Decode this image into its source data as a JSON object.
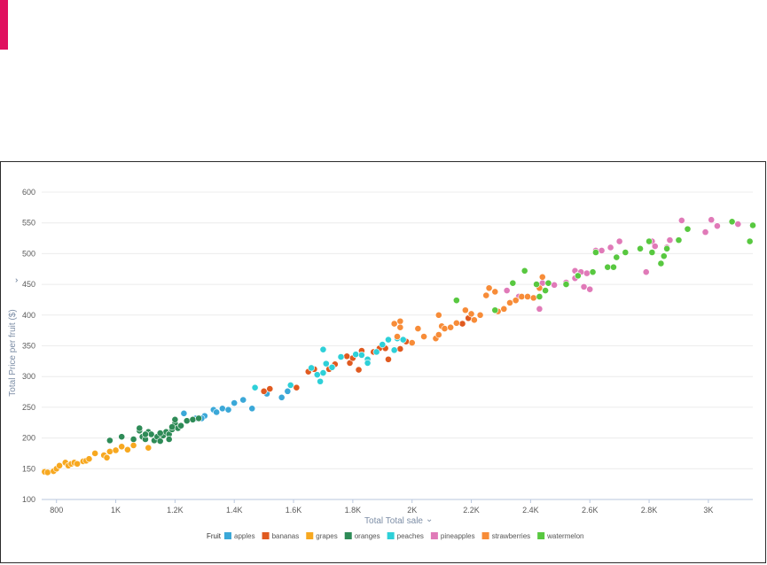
{
  "accent_color": "#e0115f",
  "chart_data": {
    "type": "scatter",
    "xlabel": "Total Total sale",
    "ylabel": "Total Price per fruit ($)",
    "xlim": [
      750,
      3150
    ],
    "ylim": [
      100,
      600
    ],
    "x_ticks": [
      {
        "v": 800,
        "label": "800"
      },
      {
        "v": 1000,
        "label": "1K"
      },
      {
        "v": 1200,
        "label": "1.2K"
      },
      {
        "v": 1400,
        "label": "1.4K"
      },
      {
        "v": 1600,
        "label": "1.6K"
      },
      {
        "v": 1800,
        "label": "1.8K"
      },
      {
        "v": 2000,
        "label": "2K"
      },
      {
        "v": 2200,
        "label": "2.2K"
      },
      {
        "v": 2400,
        "label": "2.4K"
      },
      {
        "v": 2600,
        "label": "2.6K"
      },
      {
        "v": 2800,
        "label": "2.8K"
      },
      {
        "v": 3000,
        "label": "3K"
      }
    ],
    "y_ticks": [
      {
        "v": 100,
        "label": "100"
      },
      {
        "v": 150,
        "label": "150"
      },
      {
        "v": 200,
        "label": "200"
      },
      {
        "v": 250,
        "label": "250"
      },
      {
        "v": 300,
        "label": "300"
      },
      {
        "v": 350,
        "label": "350"
      },
      {
        "v": 400,
        "label": "400"
      },
      {
        "v": 450,
        "label": "450"
      },
      {
        "v": 500,
        "label": "500"
      },
      {
        "v": 550,
        "label": "550"
      },
      {
        "v": 600,
        "label": "600"
      }
    ],
    "grid": true,
    "legend": {
      "title": "Fruit",
      "position": "bottom"
    },
    "series": [
      {
        "name": "apples",
        "color": "#3ba8d8",
        "points": [
          [
            1240,
            228
          ],
          [
            1270,
            232
          ],
          [
            1300,
            236
          ],
          [
            1330,
            246
          ],
          [
            1360,
            248
          ],
          [
            1380,
            246
          ],
          [
            1400,
            257
          ],
          [
            1430,
            262
          ],
          [
            1460,
            248
          ],
          [
            1510,
            272
          ],
          [
            1560,
            266
          ],
          [
            1580,
            276
          ],
          [
            1590,
            286
          ],
          [
            1340,
            242
          ],
          [
            1230,
            240
          ],
          [
            1290,
            232
          ]
        ]
      },
      {
        "name": "bananas",
        "color": "#e05a20",
        "points": [
          [
            1500,
            276
          ],
          [
            1520,
            280
          ],
          [
            1610,
            282
          ],
          [
            1650,
            308
          ],
          [
            1670,
            312
          ],
          [
            1720,
            312
          ],
          [
            1740,
            320
          ],
          [
            1780,
            333
          ],
          [
            1790,
            322
          ],
          [
            1800,
            330
          ],
          [
            1820,
            311
          ],
          [
            1830,
            342
          ],
          [
            1850,
            326
          ],
          [
            1870,
            340
          ],
          [
            1890,
            346
          ],
          [
            1910,
            346
          ],
          [
            1920,
            328
          ],
          [
            1960,
            345
          ],
          [
            1980,
            357
          ],
          [
            2170,
            386
          ],
          [
            2190,
            395
          ]
        ]
      },
      {
        "name": "grapes",
        "color": "#f7a820",
        "points": [
          [
            760,
            145
          ],
          [
            770,
            144
          ],
          [
            790,
            146
          ],
          [
            800,
            150
          ],
          [
            810,
            155
          ],
          [
            830,
            160
          ],
          [
            840,
            155
          ],
          [
            850,
            158
          ],
          [
            860,
            160
          ],
          [
            870,
            158
          ],
          [
            890,
            162
          ],
          [
            900,
            163
          ],
          [
            910,
            166
          ],
          [
            930,
            175
          ],
          [
            960,
            172
          ],
          [
            970,
            168
          ],
          [
            980,
            178
          ],
          [
            1000,
            180
          ],
          [
            1020,
            186
          ],
          [
            1040,
            181
          ],
          [
            1060,
            188
          ],
          [
            1110,
            184
          ]
        ]
      },
      {
        "name": "oranges",
        "color": "#2e8b57",
        "points": [
          [
            980,
            196
          ],
          [
            1020,
            202
          ],
          [
            1060,
            198
          ],
          [
            1080,
            212
          ],
          [
            1090,
            202
          ],
          [
            1100,
            198
          ],
          [
            1110,
            210
          ],
          [
            1120,
            206
          ],
          [
            1130,
            196
          ],
          [
            1140,
            202
          ],
          [
            1150,
            195
          ],
          [
            1160,
            204
          ],
          [
            1170,
            210
          ],
          [
            1180,
            206
          ],
          [
            1190,
            214
          ],
          [
            1200,
            224
          ],
          [
            1210,
            216
          ],
          [
            1220,
            220
          ],
          [
            1240,
            228
          ],
          [
            1260,
            230
          ],
          [
            1280,
            232
          ],
          [
            1080,
            216
          ],
          [
            1100,
            206
          ],
          [
            1180,
            198
          ],
          [
            1200,
            230
          ],
          [
            1150,
            208
          ],
          [
            1190,
            218
          ]
        ]
      },
      {
        "name": "peaches",
        "color": "#2ed0d8",
        "points": [
          [
            1470,
            282
          ],
          [
            1590,
            286
          ],
          [
            1660,
            314
          ],
          [
            1680,
            303
          ],
          [
            1700,
            306
          ],
          [
            1710,
            321
          ],
          [
            1730,
            315
          ],
          [
            1760,
            332
          ],
          [
            1690,
            292
          ],
          [
            1700,
            344
          ],
          [
            1810,
            336
          ],
          [
            1830,
            335
          ],
          [
            1850,
            328
          ],
          [
            1880,
            340
          ],
          [
            1900,
            352
          ],
          [
            1920,
            360
          ],
          [
            1950,
            362
          ],
          [
            1970,
            360
          ],
          [
            1940,
            343
          ],
          [
            1850,
            322
          ]
        ]
      },
      {
        "name": "pineapples",
        "color": "#e07ab8",
        "points": [
          [
            2320,
            440
          ],
          [
            2360,
            430
          ],
          [
            2440,
            452
          ],
          [
            2430,
            410
          ],
          [
            2480,
            449
          ],
          [
            2520,
            453
          ],
          [
            2550,
            472
          ],
          [
            2560,
            465
          ],
          [
            2570,
            470
          ],
          [
            2580,
            446
          ],
          [
            2600,
            442
          ],
          [
            2590,
            468
          ],
          [
            2620,
            505
          ],
          [
            2640,
            505
          ],
          [
            2670,
            510
          ],
          [
            2700,
            520
          ],
          [
            2790,
            470
          ],
          [
            2810,
            520
          ],
          [
            2820,
            512
          ],
          [
            2860,
            510
          ],
          [
            2870,
            522
          ],
          [
            2910,
            554
          ],
          [
            2990,
            535
          ],
          [
            3010,
            555
          ],
          [
            3030,
            545
          ],
          [
            3100,
            548
          ],
          [
            2550,
            460
          ]
        ]
      },
      {
        "name": "strawberries",
        "color": "#f78c38",
        "points": [
          [
            1950,
            365
          ],
          [
            1960,
            390
          ],
          [
            2000,
            355
          ],
          [
            2020,
            378
          ],
          [
            2040,
            365
          ],
          [
            2080,
            362
          ],
          [
            2090,
            368
          ],
          [
            2100,
            382
          ],
          [
            2110,
            378
          ],
          [
            2130,
            380
          ],
          [
            2150,
            387
          ],
          [
            2180,
            408
          ],
          [
            2200,
            402
          ],
          [
            2210,
            392
          ],
          [
            2230,
            400
          ],
          [
            2250,
            432
          ],
          [
            2260,
            444
          ],
          [
            2280,
            438
          ],
          [
            2290,
            406
          ],
          [
            2310,
            410
          ],
          [
            2330,
            420
          ],
          [
            2350,
            424
          ],
          [
            2370,
            430
          ],
          [
            2390,
            430
          ],
          [
            2410,
            428
          ],
          [
            2430,
            444
          ],
          [
            2440,
            462
          ],
          [
            1960,
            380
          ],
          [
            1940,
            386
          ],
          [
            2090,
            400
          ]
        ]
      },
      {
        "name": "watermelon",
        "color": "#58c840",
        "points": [
          [
            2150,
            424
          ],
          [
            2280,
            408
          ],
          [
            2340,
            452
          ],
          [
            2380,
            472
          ],
          [
            2420,
            450
          ],
          [
            2430,
            430
          ],
          [
            2450,
            440
          ],
          [
            2460,
            452
          ],
          [
            2520,
            450
          ],
          [
            2560,
            464
          ],
          [
            2610,
            470
          ],
          [
            2620,
            502
          ],
          [
            2660,
            478
          ],
          [
            2680,
            478
          ],
          [
            2690,
            494
          ],
          [
            2720,
            502
          ],
          [
            2770,
            508
          ],
          [
            2800,
            520
          ],
          [
            2810,
            502
          ],
          [
            2840,
            484
          ],
          [
            2850,
            496
          ],
          [
            2860,
            508
          ],
          [
            2900,
            522
          ],
          [
            2930,
            540
          ],
          [
            3080,
            552
          ],
          [
            3140,
            520
          ],
          [
            3150,
            546
          ]
        ]
      }
    ]
  }
}
